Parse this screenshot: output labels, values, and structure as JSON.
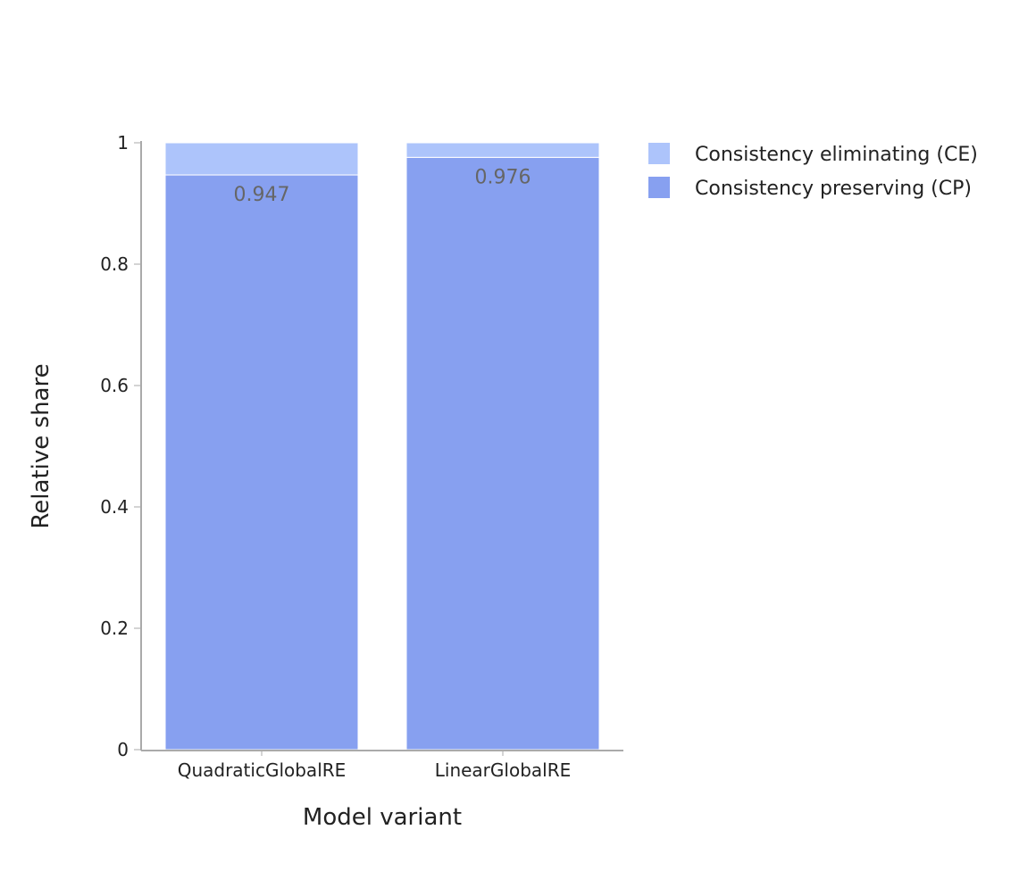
{
  "chart_data": {
    "type": "bar",
    "stacked": true,
    "categories": [
      "QuadraticGlobalRE",
      "LinearGlobalRE"
    ],
    "series": [
      {
        "name": "Consistency preserving (CP)",
        "values": [
          0.947,
          0.976
        ],
        "color": "#87a0f0",
        "data_labels": [
          "0.947",
          "0.976"
        ]
      },
      {
        "name": "Consistency eliminating (CE)",
        "values": [
          0.053,
          0.024
        ],
        "color": "#adc4fb"
      }
    ],
    "legend_order": [
      1,
      0
    ],
    "legend_position": "top-right",
    "xlabel": "Model variant",
    "ylabel": "Relative share",
    "ylim": [
      0,
      1
    ],
    "yticks": [
      0,
      0.2,
      0.4,
      0.6,
      0.8,
      1
    ],
    "ytick_labels": [
      "0",
      "0.2",
      "0.4",
      "0.6",
      "0.8",
      "1"
    ],
    "grid": false
  }
}
